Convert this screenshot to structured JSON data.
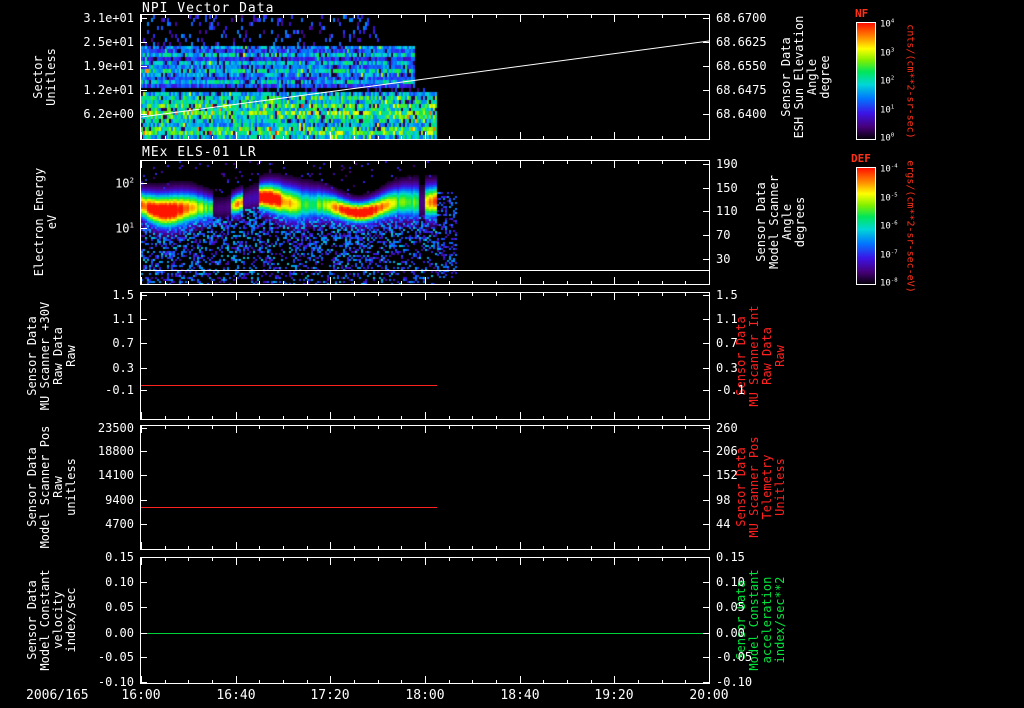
{
  "window": {
    "description": "Multi-panel space-physics time series plot"
  },
  "x_axis": {
    "date": "2006/165",
    "ticks": [
      "16:00",
      "16:40",
      "17:20",
      "18:00",
      "18:40",
      "19:20",
      "20:00"
    ],
    "minor_ticks_per_major": 4
  },
  "colors": {
    "background": "#000000",
    "foreground": "#ffffff",
    "red_series": "#ff2020",
    "green_series": "#00d23c",
    "colorbar_title": "#ff3219"
  },
  "colorbars": [
    {
      "title": "NF",
      "unit_lines": [
        "cnts/(cm**2-sr-sec)"
      ],
      "ticks": [
        {
          "label": "10^4",
          "f": 0.0
        },
        {
          "label": "10^3",
          "f": 0.25
        },
        {
          "label": "10^2",
          "f": 0.5
        },
        {
          "label": "10^1",
          "f": 0.75
        },
        {
          "label": "10^0",
          "f": 1.0
        }
      ]
    },
    {
      "title": "DEF",
      "unit_lines": [
        "ergs/(cm**2-sr-sec-eV)"
      ],
      "ticks": [
        {
          "label": "10^-4",
          "f": 0.0
        },
        {
          "label": "10^-5",
          "f": 0.25
        },
        {
          "label": "10^-6",
          "f": 0.5
        },
        {
          "label": "10^-7",
          "f": 0.75
        },
        {
          "label": "10^-8",
          "f": 1.0
        }
      ]
    }
  ],
  "chart_data": [
    {
      "type": "heatmap",
      "title": "NPI Vector Data",
      "ylabel": [
        "Sector",
        "Unitless"
      ],
      "ylim": [
        1,
        32
      ],
      "y_scale": "linear",
      "y_ticks": [
        {
          "label": "3.1e+01",
          "f": 0.035
        },
        {
          "label": "2.5e+01",
          "f": 0.225
        },
        {
          "label": "1.9e+01",
          "f": 0.415
        },
        {
          "label": "1.2e+01",
          "f": 0.6
        },
        {
          "label": "6.2e+00",
          "f": 0.79
        }
      ],
      "right_axis": {
        "label": [
          "Sensor Data",
          "ESH Sun Elevation",
          "Angle",
          "degree"
        ],
        "color": "#ffffff",
        "ylim": [
          68.632,
          68.671
        ],
        "ticks": [
          {
            "label": "68.6700",
            "f": 0.035
          },
          {
            "label": "68.6625",
            "f": 0.225
          },
          {
            "label": "68.6550",
            "f": 0.415
          },
          {
            "label": "68.6475",
            "f": 0.6
          },
          {
            "label": "68.6400",
            "f": 0.79
          }
        ]
      },
      "x_start": "16:00",
      "x_end": "20:00",
      "data_end_time": "18:05",
      "data_end_frac": 0.521,
      "rows": 32,
      "row_profile": [
        0.06,
        0.1,
        0.08,
        0.12,
        0.07,
        0.1,
        0.08,
        0.06,
        0.38,
        0.3,
        0.45,
        0.25,
        0.42,
        0.33,
        0.47,
        0.36,
        0.3,
        0.44,
        0.28,
        0.1,
        0.4,
        0.52,
        0.48,
        0.58,
        0.5,
        0.62,
        0.55,
        0.48,
        0.42,
        0.55,
        0.6,
        0.45
      ],
      "overlay_line": {
        "name": "sun-elevation-angle",
        "color": "#ffffff",
        "start_frac": [
          0,
          0.82
        ],
        "end_frac": [
          1,
          0.21
        ]
      }
    },
    {
      "type": "heatmap",
      "title": "MEx ELS-01 LR",
      "ylabel": [
        "Electron Energy",
        "eV"
      ],
      "ylim": [
        0.5,
        320
      ],
      "y_scale": "log",
      "y_ticks": [
        {
          "label": "10^2",
          "f": 0.184
        },
        {
          "label": "10^1",
          "f": 0.544
        }
      ],
      "right_axis": {
        "label": [
          "Sensor Data",
          "Model Scanner",
          "Angle",
          "degrees"
        ],
        "color": "#ffffff",
        "ylim": [
          10,
          200
        ],
        "ticks": [
          {
            "label": "190",
            "f": 0.03
          },
          {
            "label": "150",
            "f": 0.22
          },
          {
            "label": "110",
            "f": 0.41
          },
          {
            "label": "70",
            "f": 0.6
          },
          {
            "label": "30",
            "f": 0.79
          }
        ]
      },
      "x_start": "16:00",
      "x_end": "20:00",
      "data_end_time": "18:05",
      "data_end_frac": 0.521,
      "band_center_frac": 0.35,
      "band_width_frac": 0.085,
      "gaps": [
        [
          0.125,
          0.155
        ],
        [
          0.178,
          0.205
        ],
        [
          0.487,
          0.5
        ]
      ],
      "baseline_frac": 0.888
    },
    {
      "type": "line",
      "title": "",
      "ylabel": [
        "Sensor Data",
        "MU Scanner +30V",
        "Raw Data",
        "Raw"
      ],
      "ylim": [
        -0.6,
        1.55
      ],
      "y_ticks": [
        {
          "label": "1.5",
          "f": 0.02
        },
        {
          "label": "1.1",
          "f": 0.21
        },
        {
          "label": "0.7",
          "f": 0.4
        },
        {
          "label": "0.3",
          "f": 0.59
        },
        {
          "label": "-0.1",
          "f": 0.766
        }
      ],
      "right_axis": {
        "label": [
          "Sensor Data",
          "MU Scanner Int",
          "Raw Data",
          "Raw"
        ],
        "color": "#ff2020",
        "ticks": [
          {
            "label": "1.5",
            "f": 0.02
          },
          {
            "label": "1.1",
            "f": 0.21
          },
          {
            "label": "0.7",
            "f": 0.4
          },
          {
            "label": "0.3",
            "f": 0.59
          },
          {
            "label": "-0.1",
            "f": 0.766
          }
        ]
      },
      "series": [
        {
          "name": "MU Scanner +30V Raw",
          "color": "#ff2020",
          "constant_value": 0.05,
          "value_frac": 0.727,
          "x_start": "16:00",
          "x_end": "18:05",
          "x_end_frac": 0.521
        }
      ]
    },
    {
      "type": "line",
      "title": "",
      "ylabel": [
        "Sensor Data",
        "Model Scanner Pos",
        "Raw",
        "unitless"
      ],
      "ylim": [
        -400,
        24000
      ],
      "y_ticks": [
        {
          "label": "23500",
          "f": 0.02
        },
        {
          "label": "18800",
          "f": 0.21
        },
        {
          "label": "14100",
          "f": 0.4
        },
        {
          "label": "9400",
          "f": 0.6
        },
        {
          "label": "4700",
          "f": 0.79
        }
      ],
      "right_axis": {
        "label": [
          "Sensor Data",
          "MU Scanner Pos",
          "Telemetry",
          "Unitless"
        ],
        "color": "#ff2020",
        "ticks": [
          {
            "label": "260",
            "f": 0.02
          },
          {
            "label": "206",
            "f": 0.21
          },
          {
            "label": "152",
            "f": 0.4
          },
          {
            "label": "98",
            "f": 0.6
          },
          {
            "label": "44",
            "f": 0.79
          }
        ]
      },
      "series": [
        {
          "name": "Model Scanner Pos Raw",
          "color": "#ff2020",
          "constant_value": 8700,
          "value_frac": 0.656,
          "x_start": "16:00",
          "x_end": "18:05",
          "x_end_frac": 0.521
        }
      ]
    },
    {
      "type": "line",
      "title": "",
      "ylabel": [
        "Sensor Data",
        "Model Constant",
        "velocity",
        "index/sec"
      ],
      "ylim": [
        -0.1,
        0.15
      ],
      "y_ticks": [
        {
          "label": "0.15",
          "f": 0.0
        },
        {
          "label": "0.10",
          "f": 0.195
        },
        {
          "label": "0.05",
          "f": 0.39
        },
        {
          "label": "0.00",
          "f": 0.598
        },
        {
          "label": "-0.05",
          "f": 0.79
        },
        {
          "label": "-0.10",
          "f": 0.985
        }
      ],
      "right_axis": {
        "label": [
          "Sensor Data",
          "Model Constant",
          "acceleration",
          "index/sec**2"
        ],
        "color": "#00e53c",
        "ticks": [
          {
            "label": "0.15",
            "f": 0.0
          },
          {
            "label": "0.10",
            "f": 0.195
          },
          {
            "label": "0.05",
            "f": 0.39
          },
          {
            "label": "0.00",
            "f": 0.598
          },
          {
            "label": "-0.05",
            "f": 0.79
          },
          {
            "label": "-0.10",
            "f": 0.985
          }
        ]
      },
      "series": [
        {
          "name": "Model Constant velocity",
          "color": "#00d23c",
          "constant_value": 0.0,
          "value_frac": 0.598,
          "x_start": "16:00",
          "x_end": "20:00",
          "x_end_frac": 1.0
        }
      ]
    }
  ]
}
